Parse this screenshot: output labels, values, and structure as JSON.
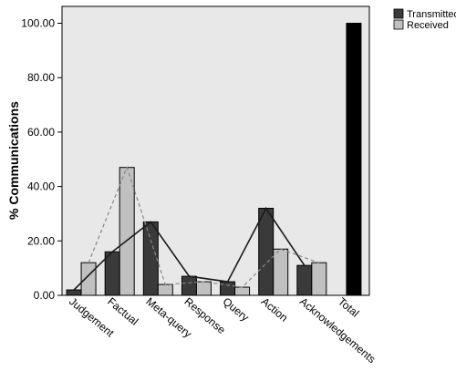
{
  "chart_data": {
    "type": "bar",
    "ylabel": "% Communications",
    "xlabel": "",
    "ylim": [
      0,
      100
    ],
    "yticks": [
      "0.00",
      "20.00",
      "40.00",
      "60.00",
      "80.00",
      "100.00"
    ],
    "categories": [
      "Judgement",
      "Factual",
      "Meta-query",
      "Response",
      "Query",
      "Action",
      "Acknowledgements",
      "Total"
    ],
    "series": [
      {
        "name": "Transmitted",
        "values": [
          2,
          16,
          27,
          7,
          5,
          32,
          11,
          100
        ],
        "color": "#3a3a3a"
      },
      {
        "name": "Received",
        "values": [
          12,
          47,
          4,
          5,
          3,
          17,
          12,
          null
        ],
        "color": "#c0c0c0"
      }
    ],
    "overlays": [
      {
        "series": "Transmitted",
        "style": "solid",
        "color": "#1a1a1a",
        "categories": [
          "Judgement",
          "Factual",
          "Meta-query",
          "Response",
          "Query",
          "Action",
          "Acknowledgements"
        ]
      },
      {
        "series": "Received",
        "style": "dashed",
        "color": "#888888",
        "categories": [
          "Judgement",
          "Factual",
          "Meta-query",
          "Response",
          "Query",
          "Action",
          "Acknowledgements"
        ]
      }
    ],
    "legend": {
      "placement": "top-right",
      "entries": [
        "Transmitted",
        "Received"
      ]
    },
    "grid": false,
    "plot_background": "#e8e8e8",
    "total_bar_color": "#000000"
  }
}
